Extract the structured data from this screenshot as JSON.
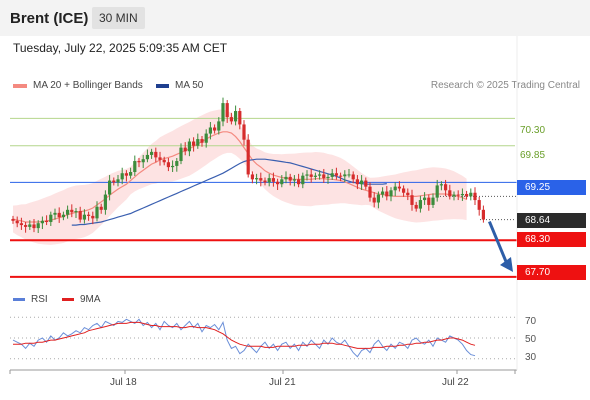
{
  "header": {
    "title": "Brent (ICE)",
    "timeframe": "30 MIN",
    "datetime": "Tuesday, July 22, 2025 5:09:35 AM CET"
  },
  "legend": {
    "ma20": "MA 20 + Bollinger Bands",
    "ma50": "MA 50",
    "rsi": "RSI",
    "rsi_ma": "9MA"
  },
  "credit": "Research © 2025 Trading Central",
  "colors": {
    "ma20": "#f48a80",
    "ma50": "#3a5fb0",
    "up": "#3c8c3c",
    "down": "#d62c2c",
    "resistance": "#b4d68c",
    "support": "#ee1111",
    "pivot": "#2a62e8",
    "current": "#2b2b2b",
    "rsi": "#6b8fd8",
    "rsi_ma": "#e02020",
    "bands": "#fde3e3"
  },
  "chart_data": [
    {
      "type": "line",
      "title": "Brent (ICE)",
      "timeframe": "30 MIN",
      "x_labels": [
        "Jul 18",
        "Jul 21",
        "Jul 22"
      ],
      "ylim": [
        67.6,
        70.65
      ],
      "levels": [
        {
          "value": "70.30",
          "kind": "resistance"
        },
        {
          "value": "69.85",
          "kind": "resistance"
        },
        {
          "value": "69.25",
          "kind": "pivot"
        },
        {
          "value": "68.64",
          "kind": "current"
        },
        {
          "value": "68.30",
          "kind": "support"
        },
        {
          "value": "67.70",
          "kind": "support"
        }
      ],
      "close": [
        68.62,
        68.58,
        68.55,
        68.52,
        68.56,
        68.5,
        68.58,
        68.62,
        68.6,
        68.72,
        68.75,
        68.68,
        68.72,
        68.8,
        68.76,
        68.78,
        68.64,
        68.72,
        68.7,
        68.66,
        68.85,
        68.8,
        69.05,
        69.28,
        69.25,
        69.3,
        69.4,
        69.36,
        69.42,
        69.6,
        69.58,
        69.63,
        69.7,
        69.75,
        69.66,
        69.62,
        69.58,
        69.5,
        69.52,
        69.6,
        69.82,
        69.76,
        69.92,
        69.85,
        69.96,
        69.9,
        70.05,
        70.15,
        70.1,
        70.25,
        70.55,
        70.32,
        70.25,
        70.42,
        70.2,
        69.95,
        69.38,
        69.3,
        69.32,
        69.28,
        69.25,
        69.32,
        69.26,
        69.22,
        69.3,
        69.34,
        69.28,
        69.3,
        69.22,
        69.36,
        69.38,
        69.34,
        69.36,
        69.38,
        69.32,
        69.34,
        69.4,
        69.36,
        69.35,
        69.38,
        69.38,
        69.3,
        69.22,
        69.28,
        69.18,
        69.0,
        68.92,
        69.05,
        69.1,
        69.02,
        69.12,
        69.18,
        69.15,
        69.08,
        69.04,
        68.88,
        68.82,
        68.96,
        69.0,
        68.88,
        69.0,
        69.2,
        69.22,
        69.12,
        69.02,
        69.05,
        69.04,
        69.06,
        69.02,
        69.08,
        68.96,
        68.8,
        68.64
      ],
      "ma20": [
        68.65,
        68.63,
        68.62,
        68.6,
        68.6,
        68.6,
        68.6,
        68.61,
        68.62,
        68.63,
        68.65,
        68.67,
        68.69,
        68.72,
        68.74,
        68.76,
        68.77,
        68.78,
        68.8,
        68.83,
        68.88,
        68.93,
        68.98,
        69.04,
        69.09,
        69.14,
        69.18,
        69.22,
        69.28,
        69.34,
        69.4,
        69.45,
        69.5,
        69.55,
        69.58,
        69.62,
        69.64,
        69.66,
        69.68,
        69.71,
        69.74,
        69.77,
        69.8,
        69.84,
        69.88,
        69.92,
        69.96,
        70.0,
        70.03,
        70.06,
        70.08,
        70.08,
        70.06,
        70.0,
        69.92,
        69.82,
        69.72,
        69.62,
        69.55,
        69.5,
        69.44,
        69.4,
        69.37,
        69.35,
        69.33,
        69.32,
        69.31,
        69.3,
        69.3,
        69.3,
        69.3,
        69.3,
        69.31,
        69.31,
        69.31,
        69.3,
        69.3,
        69.29,
        69.28,
        69.26,
        69.23,
        69.2,
        69.17,
        69.14,
        69.12,
        69.1,
        69.08,
        69.06,
        69.05,
        69.04,
        69.03,
        69.02,
        69.02,
        69.02,
        69.02,
        69.02,
        69.02,
        69.03,
        69.04,
        69.05,
        69.06,
        69.06,
        69.06,
        69.06,
        69.05,
        69.04,
        69.02,
        69.0,
        68.97
      ],
      "ma50": [
        68.55,
        68.55,
        68.56,
        68.56,
        68.57,
        68.58,
        68.59,
        68.6,
        68.62,
        68.64,
        68.66,
        68.68,
        68.7,
        68.72,
        68.74,
        68.77,
        68.8,
        68.83,
        68.86,
        68.89,
        68.92,
        68.95,
        68.98,
        69.01,
        69.04,
        69.07,
        69.1,
        69.13,
        69.16,
        69.19,
        69.22,
        69.25,
        69.28,
        69.31,
        69.34,
        69.37,
        69.4,
        69.44,
        69.48,
        69.52,
        69.56,
        69.59,
        69.61,
        69.62,
        69.63,
        69.63,
        69.63,
        69.62,
        69.61,
        69.6,
        69.59,
        69.58,
        69.57,
        69.55,
        69.53,
        69.51,
        69.49,
        69.47,
        69.45,
        69.43,
        69.41,
        69.39,
        69.37,
        69.35,
        69.32,
        69.29,
        69.27,
        69.25,
        69.24,
        69.23,
        69.22,
        69.22,
        69.22,
        69.22,
        69.22,
        69.23
      ]
    },
    {
      "type": "line",
      "series_names": [
        "RSI",
        "9MA"
      ],
      "ylim": [
        25,
        75
      ],
      "y_ticks": [
        "70",
        "50",
        "30"
      ],
      "rsi": [
        48,
        46,
        44,
        40,
        45,
        42,
        48,
        50,
        46,
        52,
        48,
        50,
        55,
        52,
        54,
        57,
        55,
        60,
        58,
        62,
        64,
        60,
        66,
        64,
        62,
        66,
        65,
        68,
        66,
        64,
        68,
        62,
        65,
        60,
        64,
        58,
        66,
        62,
        60,
        64,
        58,
        62,
        66,
        60,
        64,
        56,
        62,
        60,
        63,
        58,
        65,
        48,
        40,
        42,
        35,
        38,
        44,
        40,
        36,
        42,
        46,
        40,
        44,
        38,
        44,
        46,
        40,
        44,
        38,
        46,
        42,
        48,
        44,
        40,
        48,
        44,
        50,
        46,
        44,
        48,
        42,
        36,
        32,
        38,
        40,
        36,
        44,
        48,
        42,
        38,
        44,
        40,
        46,
        44,
        40,
        48,
        50,
        46,
        44,
        48,
        42,
        50,
        48,
        46,
        52,
        50,
        48,
        44,
        38,
        34,
        33
      ],
      "rsi_ma": [
        44,
        44,
        44,
        45,
        45,
        45,
        46,
        46,
        47,
        48,
        48,
        49,
        50,
        51,
        52,
        53,
        54,
        55,
        57,
        58,
        59,
        60,
        61,
        62,
        63,
        64,
        64,
        64,
        65,
        65,
        65,
        64,
        63,
        62,
        62,
        61,
        61,
        61,
        61,
        61,
        60,
        60,
        61,
        61,
        60,
        60,
        60,
        59,
        58,
        56,
        54,
        51,
        48,
        46,
        44,
        43,
        42,
        42,
        42,
        42,
        41,
        41,
        41,
        42,
        42,
        42,
        42,
        42,
        43,
        43,
        43,
        44,
        44,
        44,
        45,
        45,
        45,
        44,
        44,
        43,
        42,
        41,
        40,
        40,
        40,
        40,
        41,
        41,
        41,
        42,
        42,
        42,
        43,
        43,
        44,
        44,
        45,
        45,
        46,
        46,
        47,
        48,
        48,
        49,
        50,
        50,
        49,
        48,
        46,
        44,
        43
      ]
    }
  ],
  "axes": {
    "x_labels": [
      "Jul 18",
      "Jul 21",
      "Jul 22"
    ],
    "rsi_ticks": [
      "70",
      "50",
      "30"
    ]
  }
}
